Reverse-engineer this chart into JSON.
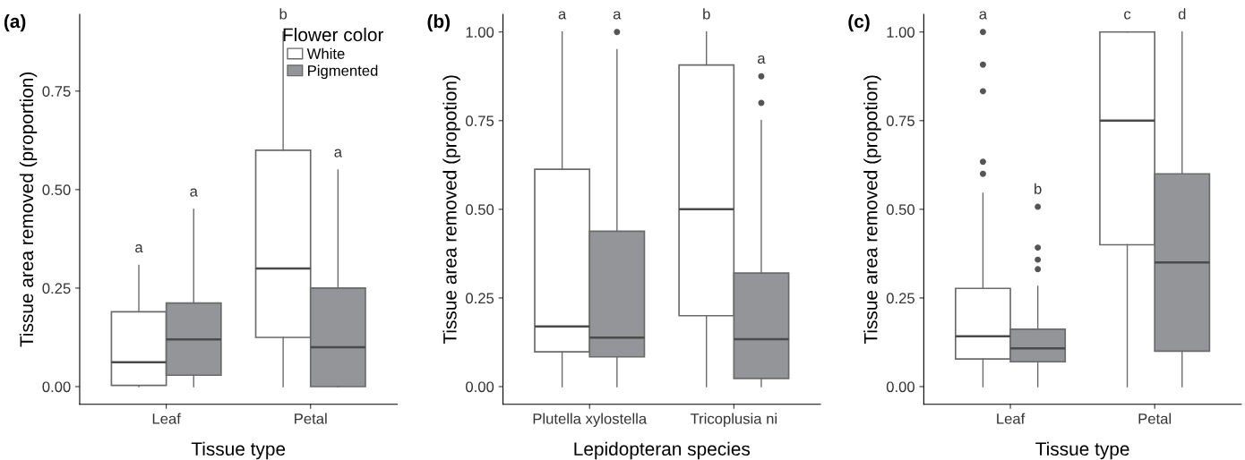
{
  "chart_data": [
    {
      "type": "box",
      "title": "(a)",
      "xlabel": "Tissue type",
      "ylabel": "Tissue area removed (proportion)",
      "legend_title": "Flower color",
      "legend": "top right",
      "grid": false,
      "categories": [
        "Leaf",
        "Petal"
      ],
      "ylim": [
        -0.045,
        0.945
      ],
      "yticks": [
        {
          "value": 0,
          "label": "0.00"
        },
        {
          "value": 0.25,
          "label": "0.25"
        },
        {
          "value": 0.5,
          "label": "0.50"
        },
        {
          "value": 0.75,
          "label": "0.75"
        }
      ],
      "series": [
        {
          "name": "White",
          "color": "#ffffff",
          "boxes": [
            {
              "low": 0,
              "q1": 0.003,
              "median": 0.062,
              "q3": 0.19,
              "high": 0.308
            },
            {
              "low": 0,
              "q1": 0.125,
              "median": 0.3,
              "q3": 0.6,
              "high": 0.9
            }
          ]
        },
        {
          "name": "Pigmented",
          "color": "#939598",
          "boxes": [
            {
              "low": 0,
              "q1": 0.029,
              "median": 0.12,
              "q3": 0.212,
              "high": 0.45
            },
            {
              "low": 0,
              "q1": 0,
              "median": 0.1,
              "q3": 0.25,
              "high": 0.55
            }
          ]
        }
      ],
      "annotations": [
        "a",
        "a",
        "b",
        "a"
      ]
    },
    {
      "type": "box",
      "title": "(b)",
      "xlabel": "Lepidopteran species",
      "ylabel": "Tissue area removed (propotion)",
      "grid": false,
      "categories": [
        "Plutella xylostella",
        "Tricoplusia ni"
      ],
      "ylim": [
        -0.05,
        1.05
      ],
      "yticks": [
        {
          "value": 0,
          "label": "0.00"
        },
        {
          "value": 0.25,
          "label": "0.25"
        },
        {
          "value": 0.5,
          "label": "0.50"
        },
        {
          "value": 0.75,
          "label": "0.75"
        },
        {
          "value": 1,
          "label": "1.00"
        }
      ],
      "series": [
        {
          "color": "#ffffff",
          "boxes": [
            {
              "low": 0,
              "q1": 0.098,
              "median": 0.17,
              "q3": 0.613,
              "high": 1.0
            },
            {
              "low": 0,
              "q1": 0.2,
              "median": 0.5,
              "q3": 0.907,
              "high": 1.0
            }
          ]
        },
        {
          "color": "#939598",
          "boxes": [
            {
              "low": 0,
              "q1": 0.084,
              "median": 0.138,
              "q3": 0.438,
              "high": 0.95,
              "outliers": [
                1.0
              ]
            },
            {
              "low": 0,
              "q1": 0.023,
              "median": 0.134,
              "q3": 0.32,
              "high": 0.75,
              "outliers": [
                0.8,
                0.875
              ]
            }
          ]
        }
      ],
      "annotations": [
        "a",
        "a",
        "b",
        "a"
      ]
    },
    {
      "type": "box",
      "title": "(c)",
      "xlabel": "Tissue type",
      "ylabel": "Tissue area removed (propotion)",
      "grid": false,
      "categories": [
        "Leaf",
        "Petal"
      ],
      "ylim": [
        -0.05,
        1.05
      ],
      "yticks": [
        {
          "value": 0,
          "label": "0.00"
        },
        {
          "value": 0.25,
          "label": "0.25"
        },
        {
          "value": 0.5,
          "label": "0.50"
        },
        {
          "value": 0.75,
          "label": "0.75"
        },
        {
          "value": 1,
          "label": "1.00"
        }
      ],
      "series": [
        {
          "color": "#ffffff",
          "boxes": [
            {
              "low": 0,
              "q1": 0.078,
              "median": 0.142,
              "q3": 0.277,
              "high": 0.545,
              "outliers": [
                0.6,
                0.634,
                0.833,
                0.908,
                1.0
              ]
            },
            {
              "low": 0,
              "q1": 0.4,
              "median": 0.75,
              "q3": 1.0,
              "high": 1.0
            }
          ]
        },
        {
          "color": "#939598",
          "boxes": [
            {
              "low": 0,
              "q1": 0.07,
              "median": 0.108,
              "q3": 0.162,
              "high": 0.283,
              "outliers": [
                0.331,
                0.358,
                0.392,
                0.507
              ]
            },
            {
              "low": 0,
              "q1": 0.1,
              "median": 0.35,
              "q3": 0.6,
              "high": 1.0
            }
          ]
        }
      ],
      "annotations": [
        "a",
        "b",
        "c",
        "d"
      ]
    }
  ]
}
